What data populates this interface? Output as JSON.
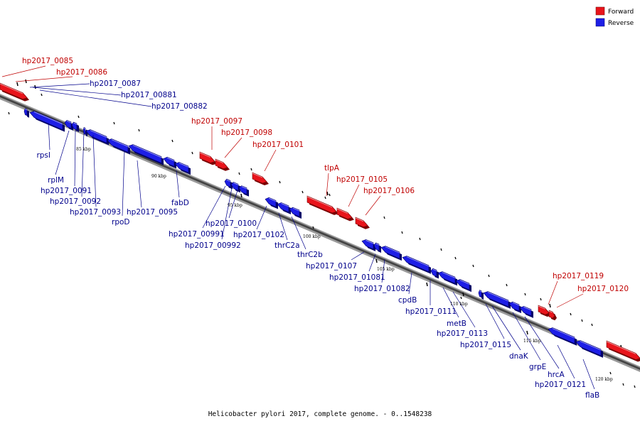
{
  "caption": "Helicobacter pylori 2017, complete genome. - 0..1548238",
  "legend": [
    {
      "label": "Forward",
      "color": "#e8141b"
    },
    {
      "label": "Reverse",
      "color": "#1d1ee6"
    }
  ],
  "colors": {
    "forward": "#e8141b",
    "reverse": "#1d1ee6",
    "label_forward": "#c00000",
    "label_reverse": "#00008b"
  },
  "kbp_ticks": [
    "85 kbp",
    "90 kbp",
    "95 kbp",
    "100 kbp",
    "105 kbp",
    "110 kbp",
    "115 kbp",
    "120 kbp"
  ],
  "forward_genes": [
    "hp2017_0085",
    "hp2017_0086",
    "hp2017_0097",
    "hp2017_0098",
    "hp2017_0101",
    "tlpA",
    "hp2017_0105",
    "hp2017_0106",
    "hp2017_0119",
    "hp2017_0120"
  ],
  "reverse_genes": [
    "hp2017_0087",
    "hp2017_00881",
    "hp2017_00882",
    "rpsI",
    "rplM",
    "hp2017_0091",
    "hp2017_0092",
    "hp2017_0093",
    "rpoD",
    "hp2017_0095",
    "fabD",
    "hp2017_00991",
    "hp2017_00992",
    "hp2017_0100",
    "hp2017_0102",
    "thrC2a",
    "thrC2b",
    "hp2017_0107",
    "hp2017_01081",
    "hp2017_01082",
    "cpdB",
    "hp2017_0111",
    "metB",
    "hp2017_0113",
    "hp2017_0115",
    "dnaK",
    "grpE",
    "hrcA",
    "hp2017_0121",
    "flaB"
  ]
}
